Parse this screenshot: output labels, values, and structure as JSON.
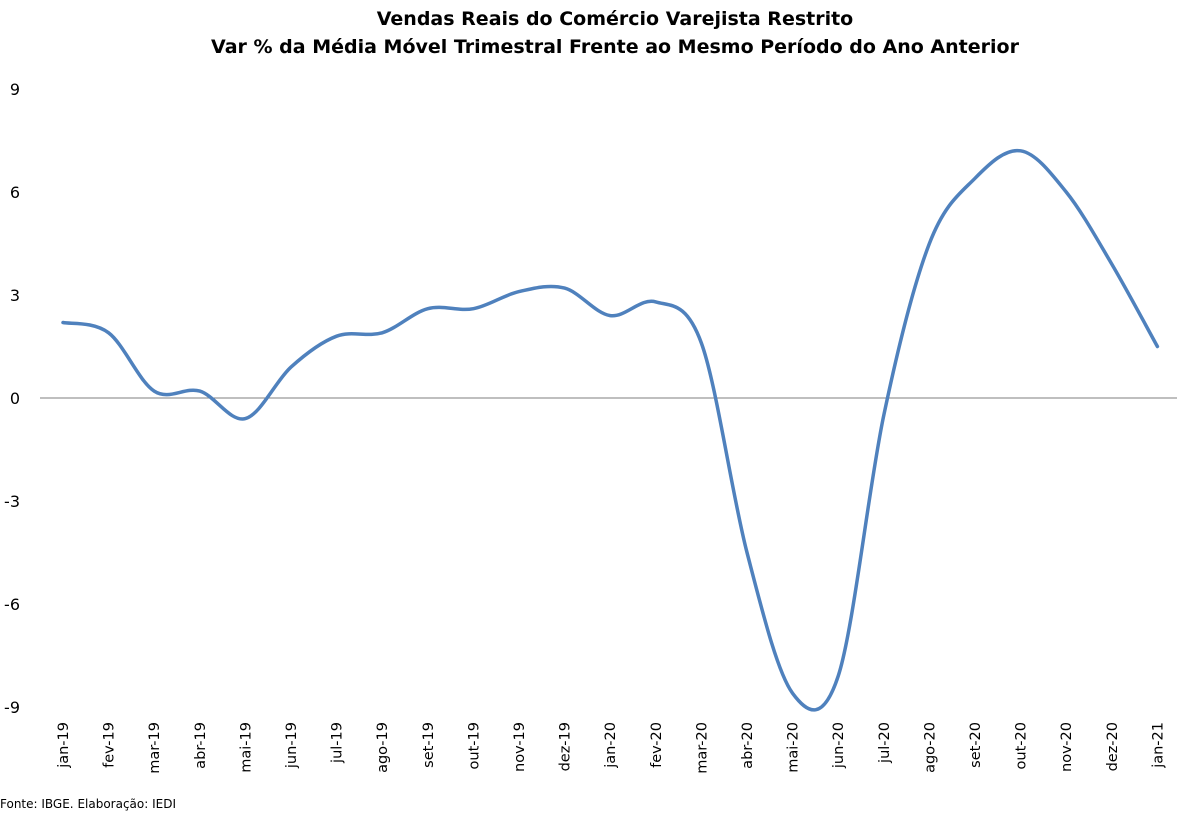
{
  "chart_data": {
    "type": "line",
    "title": "Vendas Reais do Comércio Varejista Restrito",
    "subtitle": "Var % da Média Móvel Trimestral Frente ao Mesmo Período do Ano Anterior",
    "xlabel": "",
    "ylabel": "",
    "ylim": [
      -9,
      9
    ],
    "yticks": [
      "9",
      "6",
      "3",
      "0",
      "-3",
      "-6",
      "-9"
    ],
    "categories": [
      "jan-19",
      "fev-19",
      "mar-19",
      "abr-19",
      "mai-19",
      "jun-19",
      "jul-19",
      "ago-19",
      "set-19",
      "out-19",
      "nov-19",
      "dez-19",
      "jan-20",
      "fev-20",
      "mar-20",
      "abr-20",
      "mai-20",
      "jun-20",
      "jul-20",
      "ago-20",
      "set-20",
      "out-20",
      "nov-20",
      "dez-20",
      "jan-21"
    ],
    "series": [
      {
        "values": [
          2.2,
          1.9,
          0.2,
          0.2,
          -0.6,
          0.9,
          1.8,
          1.9,
          2.6,
          2.6,
          3.1,
          3.2,
          2.4,
          2.8,
          1.6,
          -4.5,
          -8.6,
          -8.1,
          -0.5,
          4.5,
          6.4,
          7.2,
          6.0,
          3.9,
          1.5
        ],
        "color": "#4f81bd"
      }
    ],
    "grid": false,
    "zero_line": true,
    "legend": "none",
    "source": "Fonte: IBGE. Elaboração: IEDI"
  }
}
